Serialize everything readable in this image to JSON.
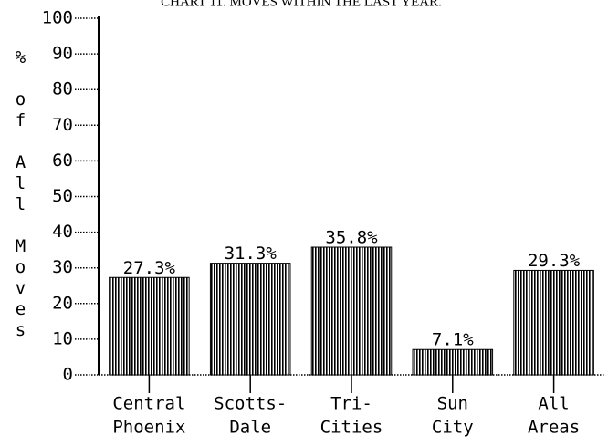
{
  "chart_data": {
    "type": "bar",
    "title": "CHART 11. MOVES WITHIN THE LAST YEAR.",
    "y_label": "% of All Moves",
    "categories": [
      [
        "Central",
        "Phoenix"
      ],
      [
        "Scotts-",
        "Dale"
      ],
      [
        "Tri-",
        "Cities"
      ],
      [
        "Sun",
        "City"
      ],
      [
        "All",
        "Areas"
      ]
    ],
    "values": [
      27.3,
      31.3,
      35.8,
      7.1,
      29.3
    ],
    "value_labels": [
      "27.3%",
      "31.3%",
      "35.8%",
      "7.1%",
      "29.3%"
    ],
    "color": "#000000",
    "ylim": [
      0,
      100
    ],
    "yticks": [
      0,
      10,
      20,
      30,
      40,
      50,
      60,
      70,
      80,
      90,
      100
    ]
  }
}
